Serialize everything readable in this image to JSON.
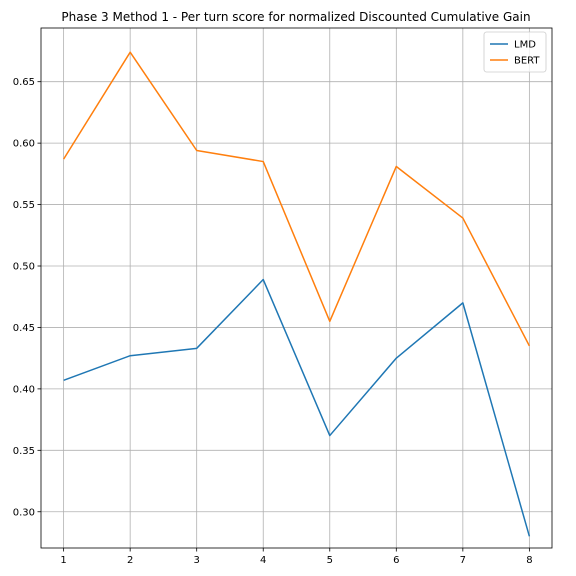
{
  "chart_data": {
    "type": "line",
    "title": "Phase 3 Method 1 - Per turn score for normalized Discounted Cumulative Gain",
    "xlabel": "",
    "ylabel": "",
    "x": [
      1,
      2,
      3,
      4,
      5,
      6,
      7,
      8
    ],
    "xlim": [
      0.66,
      8.34
    ],
    "ylim": [
      0.2705,
      0.6937
    ],
    "xticks": [
      1,
      2,
      3,
      4,
      5,
      6,
      7,
      8
    ],
    "yticks": [
      0.3,
      0.35,
      0.4,
      0.45,
      0.5,
      0.55,
      0.6,
      0.65
    ],
    "ytick_labels": [
      "0.30",
      "0.35",
      "0.40",
      "0.45",
      "0.50",
      "0.55",
      "0.60",
      "0.65"
    ],
    "grid": true,
    "legend_position": "top-right",
    "series": [
      {
        "name": "LMD",
        "color": "#1f77b4",
        "values": [
          0.407,
          0.427,
          0.433,
          0.489,
          0.362,
          0.425,
          0.47,
          0.28
        ]
      },
      {
        "name": "BERT",
        "color": "#ff7f0e",
        "values": [
          0.587,
          0.674,
          0.594,
          0.585,
          0.455,
          0.581,
          0.539,
          0.435
        ]
      }
    ]
  }
}
